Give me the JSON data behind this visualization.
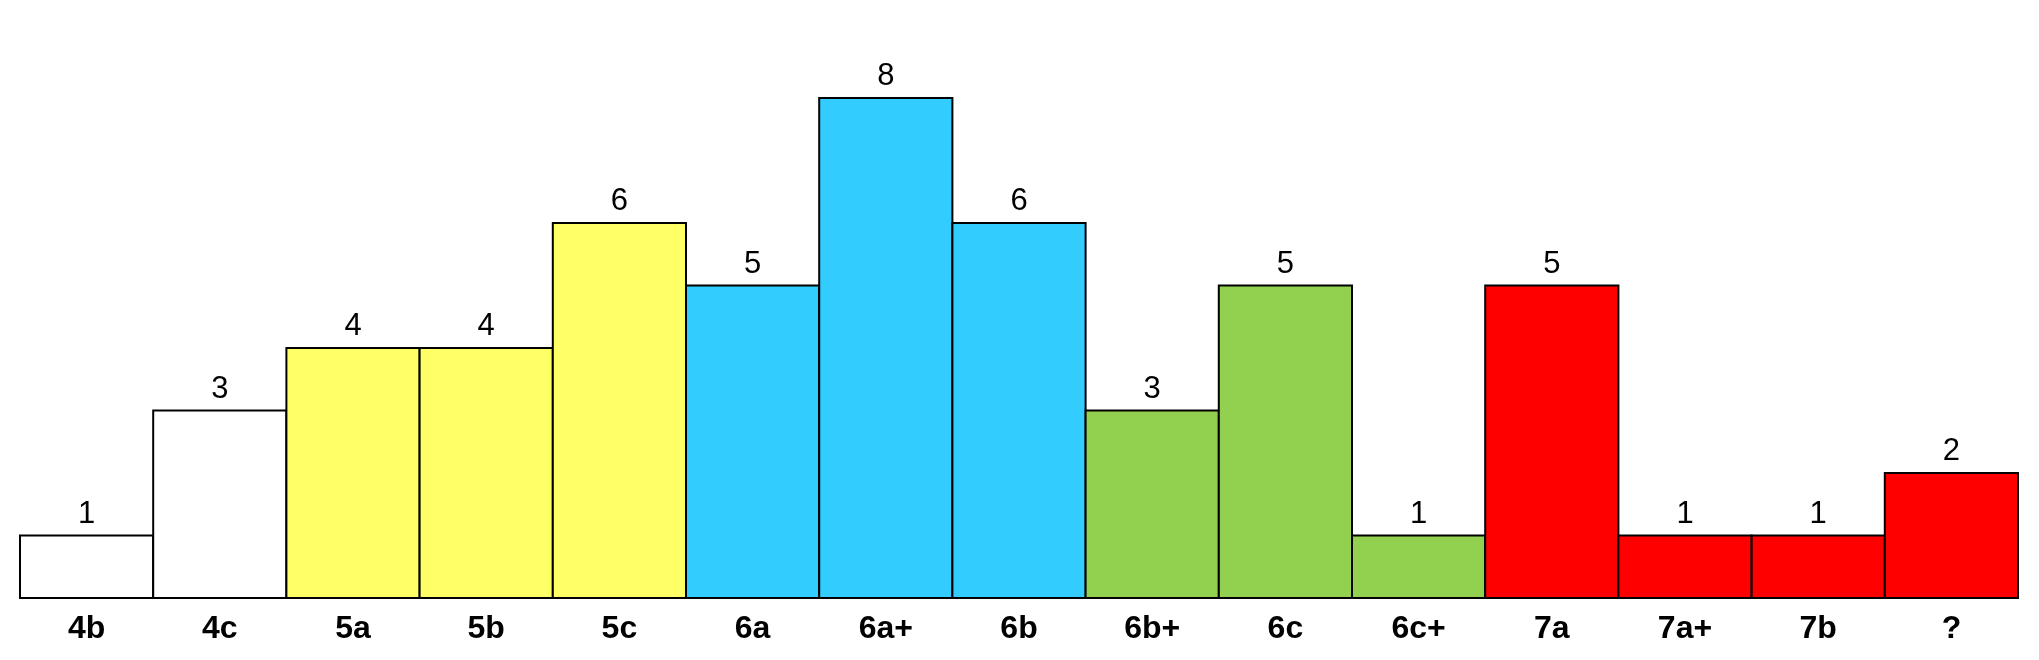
{
  "chart_data": {
    "type": "bar",
    "categories": [
      "4b",
      "4c",
      "5a",
      "5b",
      "5c",
      "6a",
      "6a+",
      "6b",
      "6b+",
      "6c",
      "6c+",
      "7a",
      "7a+",
      "7b",
      "?"
    ],
    "values": [
      1,
      3,
      4,
      4,
      6,
      5,
      8,
      6,
      3,
      5,
      1,
      5,
      1,
      1,
      2
    ],
    "colors": [
      "#ffffff",
      "#ffffff",
      "#ffff66",
      "#ffff66",
      "#ffff66",
      "#33ccff",
      "#33ccff",
      "#33ccff",
      "#92d050",
      "#92d050",
      "#92d050",
      "#ff0000",
      "#ff0000",
      "#ff0000",
      "#ff0000"
    ],
    "data_labels": true,
    "grid": false,
    "tick_labels": "x"
  }
}
